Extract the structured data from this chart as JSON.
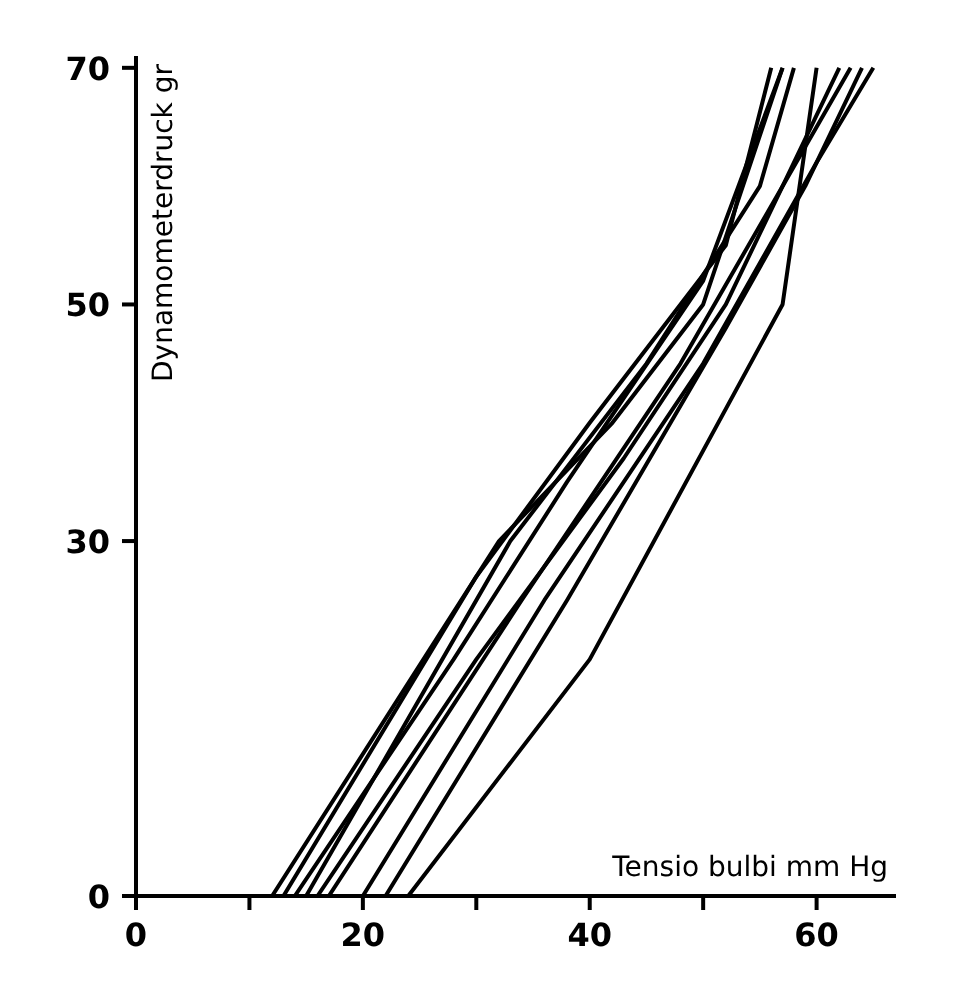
{
  "chart_data": {
    "type": "line",
    "xlabel": "Tensio bulbi mm Hg",
    "ylabel": "Dynamometerdruck gr",
    "xlim": [
      0,
      67
    ],
    "ylim": [
      0,
      71
    ],
    "xticks": [
      0,
      {
        "value": 10,
        "label": null
      },
      20,
      {
        "value": 30,
        "label": null
      },
      40,
      {
        "value": 50,
        "label": null
      },
      60
    ],
    "yticks": [
      0,
      30,
      50,
      70
    ],
    "grid": false,
    "marker": "none",
    "line_style": "solid",
    "series": [
      {
        "color": "#000000",
        "x": [
          12,
          32,
          42,
          50,
          57
        ],
        "values": [
          0,
          30,
          40,
          50,
          70
        ]
      },
      {
        "color": "#000000",
        "x": [
          13,
          30,
          40,
          52,
          56
        ],
        "values": [
          0,
          27,
          40,
          55,
          70
        ]
      },
      {
        "color": "#000000",
        "x": [
          14,
          28,
          38,
          50,
          57
        ],
        "values": [
          0,
          20,
          35,
          52,
          70
        ]
      },
      {
        "color": "#000000",
        "x": [
          15,
          33,
          45,
          55,
          58
        ],
        "values": [
          0,
          30,
          45,
          60,
          70
        ]
      },
      {
        "color": "#000000",
        "x": [
          16,
          30,
          43,
          52,
          62
        ],
        "values": [
          0,
          20,
          37,
          50,
          70
        ]
      },
      {
        "color": "#000000",
        "x": [
          17,
          34,
          48,
          57,
          63
        ],
        "values": [
          0,
          25,
          45,
          60,
          70
        ]
      },
      {
        "color": "#000000",
        "x": [
          20,
          36,
          50,
          60,
          65
        ],
        "values": [
          0,
          25,
          45,
          62,
          70
        ]
      },
      {
        "color": "#000000",
        "x": [
          22,
          38,
          52,
          59,
          64
        ],
        "values": [
          0,
          25,
          48,
          60,
          70
        ]
      },
      {
        "color": "#000000",
        "x": [
          24,
          40,
          57,
          60
        ],
        "values": [
          0,
          20,
          50,
          70
        ]
      }
    ]
  }
}
